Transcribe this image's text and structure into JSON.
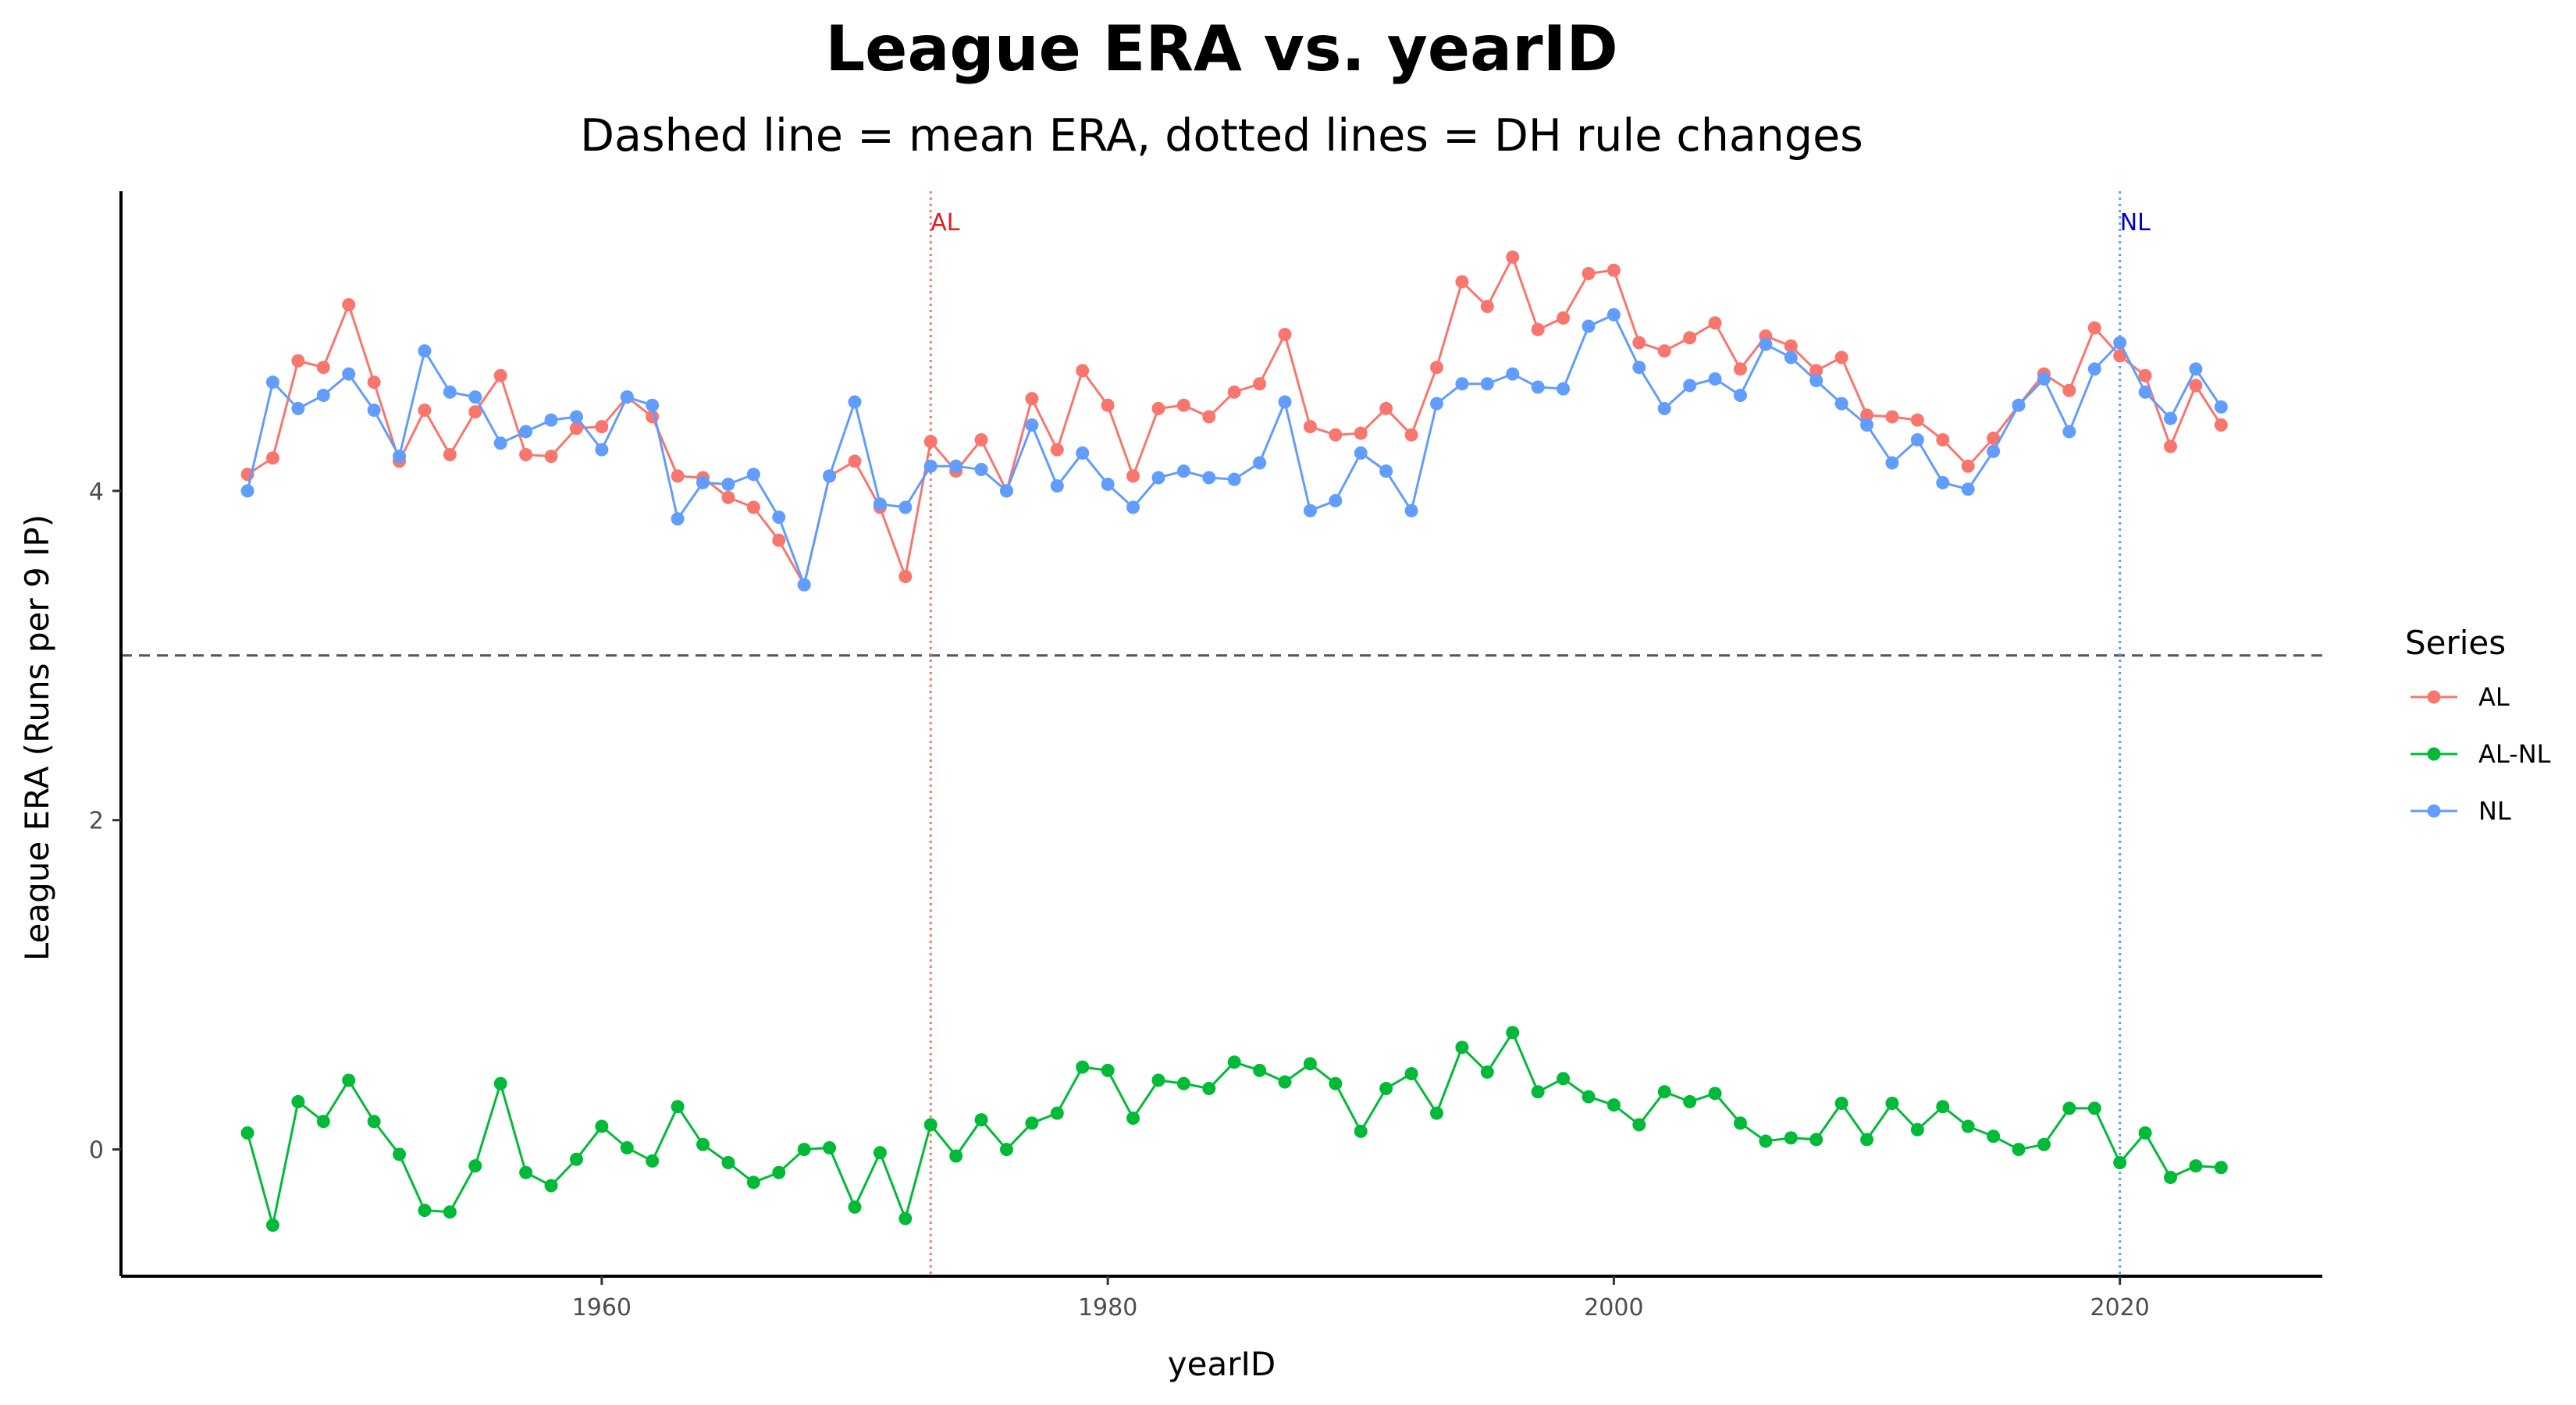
{
  "chart_data": {
    "type": "line",
    "title": "League ERA vs. yearID",
    "subtitle": "Dashed line = mean ERA, dotted lines = DH rule changes",
    "xlabel": "yearID",
    "ylabel": "League ERA (Runs per 9 IP)",
    "xlim": [
      1941,
      2028
    ],
    "ylim": [
      -0.77,
      5.82
    ],
    "x_ticks": [
      1960,
      1980,
      2000,
      2020
    ],
    "y_ticks": [
      0,
      2,
      4
    ],
    "grid": false,
    "legend": {
      "title": "Series",
      "position": "right"
    },
    "mean_line": {
      "y": 3.0,
      "color": "#555555",
      "style": "dashed"
    },
    "annotations": [
      {
        "label": "AL",
        "x": 1973,
        "color": "#e41a1c",
        "line_color": "#F8766D",
        "style": "dotted"
      },
      {
        "label": "NL",
        "x": 2020,
        "color": "#0000cc",
        "line_color": "#619CFF",
        "style": "dotted"
      }
    ],
    "x": [
      1946,
      1947,
      1948,
      1949,
      1950,
      1951,
      1952,
      1953,
      1954,
      1955,
      1956,
      1957,
      1958,
      1959,
      1960,
      1961,
      1962,
      1963,
      1964,
      1965,
      1966,
      1967,
      1968,
      1969,
      1970,
      1971,
      1972,
      1973,
      1974,
      1975,
      1976,
      1977,
      1978,
      1979,
      1980,
      1981,
      1982,
      1983,
      1984,
      1985,
      1986,
      1987,
      1988,
      1989,
      1990,
      1991,
      1992,
      1993,
      1994,
      1995,
      1996,
      1997,
      1998,
      1999,
      2000,
      2001,
      2002,
      2003,
      2004,
      2005,
      2006,
      2007,
      2008,
      2009,
      2010,
      2011,
      2012,
      2013,
      2014,
      2015,
      2016,
      2017,
      2018,
      2019,
      2020,
      2021,
      2022,
      2023,
      2024
    ],
    "series": [
      {
        "name": "AL",
        "color": "#F8766D",
        "values": [
          4.1,
          4.2,
          4.79,
          4.75,
          5.13,
          4.66,
          4.18,
          4.49,
          4.22,
          4.48,
          4.7,
          4.22,
          4.21,
          4.38,
          4.39,
          4.57,
          4.45,
          4.09,
          4.08,
          3.96,
          3.9,
          3.7,
          3.43,
          4.09,
          4.18,
          3.9,
          3.48,
          4.3,
          4.12,
          4.31,
          4.0,
          4.56,
          4.25,
          4.73,
          4.52,
          4.09,
          4.5,
          4.52,
          4.45,
          4.6,
          4.65,
          4.95,
          4.39,
          4.34,
          4.35,
          4.5,
          4.34,
          4.75,
          5.27,
          5.12,
          5.42,
          4.98,
          5.05,
          5.32,
          5.34,
          4.9,
          4.85,
          4.93,
          5.02,
          4.74,
          4.94,
          4.88,
          4.73,
          4.81,
          4.46,
          4.45,
          4.43,
          4.31,
          4.15,
          4.32,
          4.52,
          4.71,
          4.61,
          4.99,
          4.82,
          4.7,
          4.27,
          4.64,
          4.4
        ]
      },
      {
        "name": "AL-NL",
        "color": "#00BA38",
        "values": [
          0.1,
          -0.46,
          0.29,
          0.17,
          0.42,
          0.17,
          -0.03,
          -0.37,
          -0.38,
          -0.1,
          0.4,
          -0.14,
          -0.22,
          -0.06,
          0.14,
          0.01,
          -0.07,
          0.26,
          0.03,
          -0.08,
          -0.2,
          -0.14,
          0.0,
          0.01,
          -0.35,
          -0.02,
          -0.42,
          0.15,
          -0.04,
          0.18,
          0.0,
          0.16,
          0.22,
          0.5,
          0.48,
          0.19,
          0.42,
          0.4,
          0.37,
          0.53,
          0.48,
          0.41,
          0.52,
          0.4,
          0.11,
          0.37,
          0.46,
          0.22,
          0.62,
          0.47,
          0.71,
          0.35,
          0.43,
          0.32,
          0.27,
          0.15,
          0.35,
          0.29,
          0.34,
          0.16,
          0.05,
          0.07,
          0.06,
          0.28,
          0.06,
          0.28,
          0.12,
          0.26,
          0.14,
          0.08,
          0.0,
          0.03,
          0.25,
          0.25,
          -0.08,
          0.1,
          -0.17,
          -0.1,
          -0.11
        ]
      },
      {
        "name": "NL",
        "color": "#619CFF",
        "values": [
          4.0,
          4.66,
          4.5,
          4.58,
          4.71,
          4.49,
          4.21,
          4.85,
          4.6,
          4.57,
          4.29,
          4.36,
          4.43,
          4.45,
          4.25,
          4.57,
          4.52,
          3.83,
          4.05,
          4.04,
          4.1,
          3.84,
          3.43,
          4.09,
          4.54,
          3.92,
          3.9,
          4.15,
          4.15,
          4.13,
          4.0,
          4.4,
          4.03,
          4.23,
          4.04,
          3.9,
          4.08,
          4.12,
          4.08,
          4.07,
          4.17,
          4.54,
          3.88,
          3.94,
          4.23,
          4.12,
          3.88,
          4.53,
          4.65,
          4.65,
          4.71,
          4.63,
          4.62,
          5.0,
          5.07,
          4.75,
          4.5,
          4.64,
          4.68,
          4.58,
          4.89,
          4.81,
          4.67,
          4.53,
          4.4,
          4.17,
          4.31,
          4.05,
          4.01,
          4.24,
          4.52,
          4.68,
          4.36,
          4.74,
          4.9,
          4.6,
          4.44,
          4.74,
          4.51
        ]
      }
    ]
  }
}
